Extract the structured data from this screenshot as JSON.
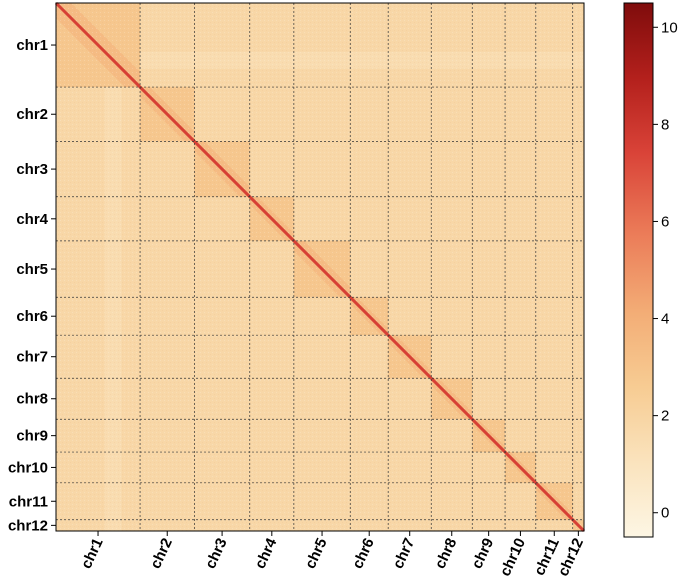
{
  "chart_data": {
    "type": "heatmap",
    "title": "",
    "xlabel": "",
    "ylabel": "",
    "chromosomes": [
      "chr1",
      "chr2",
      "chr3",
      "chr4",
      "chr5",
      "chr6",
      "chr7",
      "chr8",
      "chr9",
      "chr10",
      "chr11",
      "chr12"
    ],
    "relative_sizes": [
      82,
      53,
      54,
      43,
      55,
      37,
      42,
      40,
      32,
      30,
      36,
      11
    ],
    "x_tick_labels": [
      "chr1",
      "chr2",
      "chr3",
      "chr4",
      "chr5",
      "chr6",
      "chr7",
      "chr8",
      "chr9",
      "chr10",
      "chr11",
      "chr12"
    ],
    "y_tick_labels": [
      "chr1",
      "chr2",
      "chr3",
      "chr4",
      "chr5",
      "chr6",
      "chr7",
      "chr8",
      "chr9",
      "chr10",
      "chr11",
      "chr12"
    ],
    "values": {
      "diagonal": 7.5,
      "intra_chromosome": 2.9,
      "inter_chromosome": 1.9,
      "low_coverage_band": 0.8
    },
    "colorbar": {
      "min": -0.5,
      "max": 10.5,
      "ticks": [
        "0",
        "2",
        "4",
        "6",
        "8",
        "10"
      ],
      "tick_values": [
        0,
        2,
        4,
        6,
        8,
        10
      ],
      "colors": [
        "#fdf6e4",
        "#fae3bd",
        "#f7cc93",
        "#f3ad76",
        "#eb7b58",
        "#d94338",
        "#b3201c",
        "#7f0c0c"
      ]
    },
    "grid_color": "#333333"
  }
}
